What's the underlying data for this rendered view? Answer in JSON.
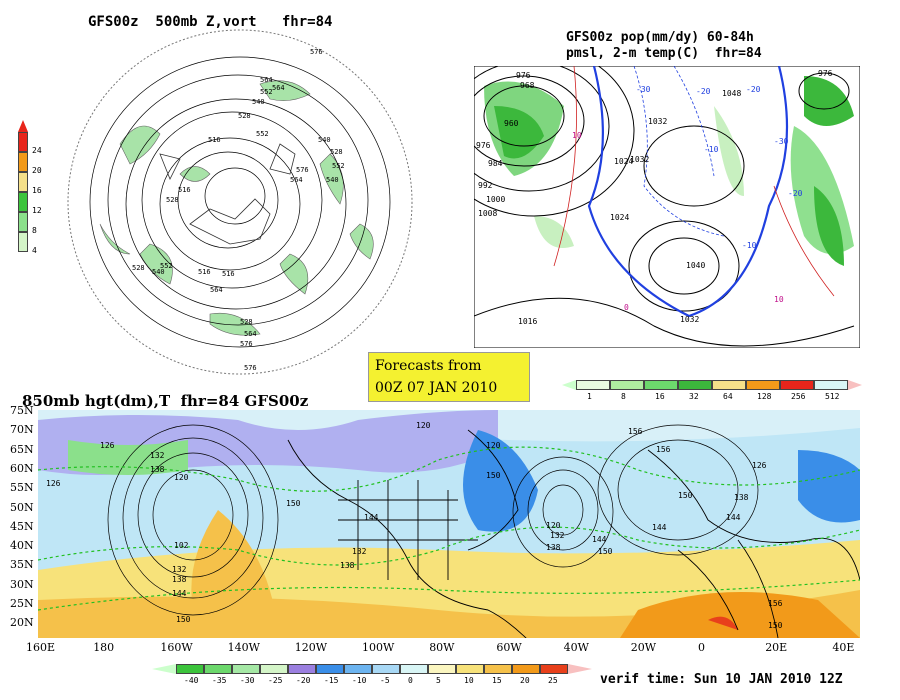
{
  "top_left": {
    "title": "GFS00z  500mb Z,vort   fhr=84",
    "legend": {
      "labels": [
        "24",
        "20",
        "16",
        "12",
        "8",
        "4"
      ],
      "colors": [
        "#e8251b",
        "#f29a1a",
        "#f5e08a",
        "#3cc43c",
        "#8be08b",
        "#d4f5c8"
      ]
    },
    "contour_labels": [
      "576",
      "564",
      "552",
      "540",
      "528",
      "516",
      "564",
      "552",
      "540",
      "528",
      "540",
      "552",
      "564",
      "576",
      "516",
      "528",
      "552",
      "540",
      "528",
      "516",
      "564",
      "516",
      "576",
      "528",
      "564",
      "576"
    ]
  },
  "top_right": {
    "title_line1": "GFS00z pop(mm/dy) 60-84h",
    "title_line2": "pmsl, 2-m temp(C)  fhr=84",
    "pressure_labels": [
      "976",
      "968",
      "960",
      "976",
      "984",
      "992",
      "1000",
      "1008",
      "1016",
      "1024",
      "1032",
      "1024",
      "1032",
      "1048",
      "1040",
      "1032",
      "976"
    ],
    "temp_labels": [
      "-30",
      "-20",
      "-20",
      "-30",
      "-20",
      "-10",
      "-10",
      "10",
      "10",
      "0"
    ],
    "colorbar": {
      "labels": [
        "1",
        "8",
        "16",
        "32",
        "64",
        "128",
        "256",
        "512"
      ],
      "colors": [
        "#e9fbe0",
        "#b0eea0",
        "#6cd86c",
        "#3cb83c",
        "#f5e08a",
        "#f29a1a",
        "#e8251b",
        "#d8f5f5"
      ]
    }
  },
  "forecast_box": {
    "line1": "Forecasts from",
    "line2": "00Z 07 JAN 2010"
  },
  "bottom": {
    "title": "850mb hgt(dm),T  fhr=84 GFS00z",
    "lat_labels": [
      "75N",
      "70N",
      "65N",
      "60N",
      "55N",
      "50N",
      "45N",
      "40N",
      "35N",
      "30N",
      "25N",
      "20N"
    ],
    "lon_labels": [
      "160E",
      "180",
      "160W",
      "140W",
      "120W",
      "100W",
      "80W",
      "60W",
      "40W",
      "20W",
      "0",
      "20E",
      "40E"
    ],
    "height_labels": [
      "126",
      "132",
      "138",
      "126",
      "102",
      "120",
      "132",
      "138",
      "144",
      "150",
      "150",
      "144",
      "138",
      "132",
      "120",
      "120",
      "150",
      "156",
      "144",
      "138",
      "144",
      "150",
      "156",
      "150",
      "144",
      "138",
      "150",
      "156",
      "120",
      "132",
      "126"
    ],
    "colorbar": {
      "labels": [
        "-40",
        "-35",
        "-30",
        "-25",
        "-20",
        "-15",
        "-10",
        "-5",
        "0",
        "5",
        "10",
        "15",
        "20",
        "25"
      ],
      "colors": [
        "#3cc43c",
        "#6cd86c",
        "#a5e8a5",
        "#d4f5c8",
        "#9b7fe0",
        "#3a8ee8",
        "#6cb4f0",
        "#a8d8f5",
        "#d8f5f5",
        "#fbf6c0",
        "#f7e27a",
        "#f5c14a",
        "#f29a1a",
        "#e8401b"
      ]
    },
    "verif": "verif time: Sun 10 JAN 2010 12Z"
  }
}
